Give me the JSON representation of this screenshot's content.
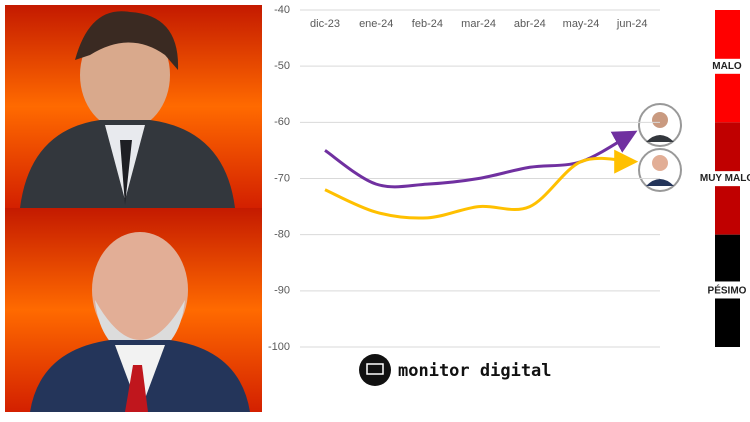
{
  "chart_data": {
    "type": "line",
    "categories": [
      "dic-23",
      "ene-24",
      "feb-24",
      "mar-24",
      "abr-24",
      "may-24",
      "jun-24"
    ],
    "series": [
      {
        "color": "#7030a0",
        "values": [
          -65,
          -71,
          -71,
          -70,
          -68,
          -67,
          -62
        ]
      },
      {
        "color": "#ffc000",
        "values": [
          -72,
          -76,
          -77,
          -75,
          -75,
          -67,
          -67
        ]
      }
    ],
    "ylim": [
      -100,
      -40
    ],
    "yticks": [
      -40,
      -50,
      -60,
      -70,
      -80,
      -90,
      -100
    ],
    "grid": true,
    "bands": [
      {
        "label": "MALO",
        "range": [
          -40,
          -60
        ],
        "color": "#ff0000"
      },
      {
        "label": "MUY MALO",
        "range": [
          -60,
          -80
        ],
        "color": "#c00000"
      },
      {
        "label": "PÉSIMO",
        "range": [
          -80,
          -100
        ],
        "color": "#000000"
      }
    ],
    "logo": "monitor digital"
  }
}
